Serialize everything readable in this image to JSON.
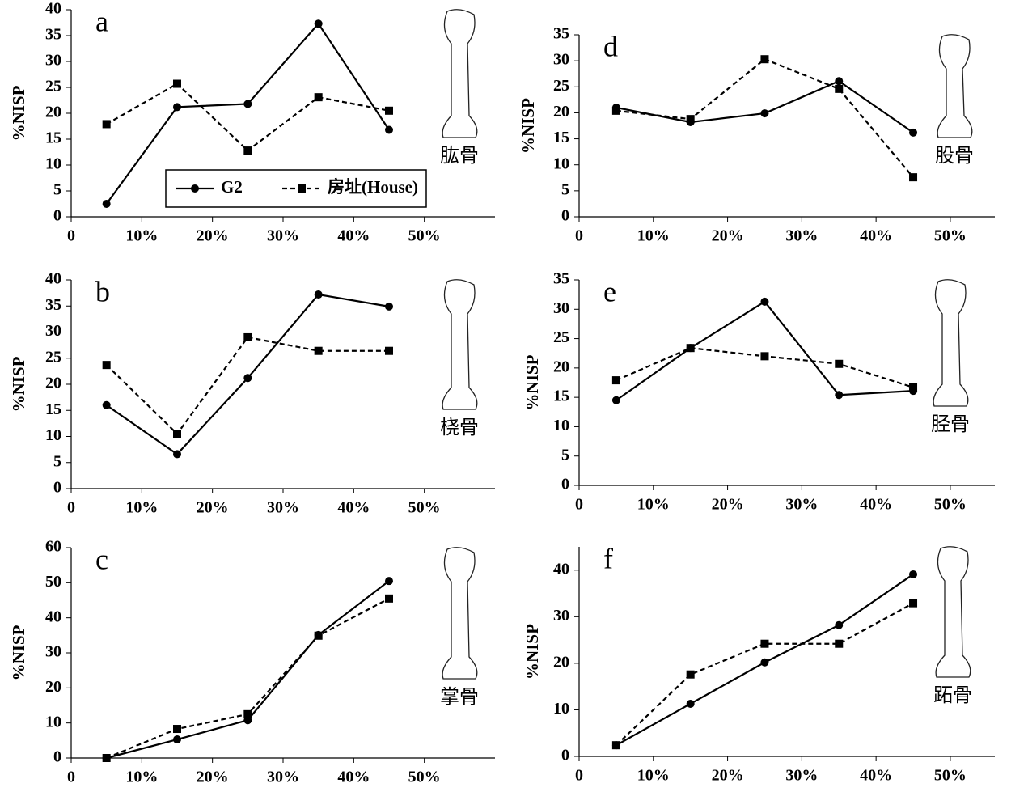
{
  "chart_data": [
    {
      "type": "line",
      "label": "a",
      "annotation": "肱骨",
      "ylabel": "%NISP",
      "x": [
        5,
        15,
        25,
        35,
        45
      ],
      "xlim": [
        0,
        60
      ],
      "xticks": [
        0,
        {
          "value": 10,
          "label": "10%"
        },
        {
          "value": 20,
          "label": "20%"
        },
        {
          "value": 30,
          "label": "30%"
        },
        {
          "value": 40,
          "label": "40%"
        },
        {
          "value": 50,
          "label": "50%"
        }
      ],
      "ylim": [
        0,
        40
      ],
      "yticks": [
        0,
        5,
        10,
        15,
        20,
        25,
        30,
        35,
        40
      ],
      "legend": "bottom",
      "series": [
        {
          "name": "G2",
          "color": "#000000",
          "marker": "circle",
          "dashed": false,
          "values": [
            2.5,
            21.2,
            21.8,
            37.3,
            16.8
          ]
        },
        {
          "name": "房址(House)",
          "color": "#000000",
          "marker": "square",
          "dashed": true,
          "values": [
            17.9,
            25.7,
            12.8,
            23.1,
            20.5
          ]
        }
      ]
    },
    {
      "type": "line",
      "label": "b",
      "annotation": "桡骨",
      "ylabel": "%NISP",
      "x": [
        5,
        15,
        25,
        35,
        45
      ],
      "xlim": [
        0,
        60
      ],
      "xticks": [
        0,
        {
          "value": 10,
          "label": "10%"
        },
        {
          "value": 20,
          "label": "20%"
        },
        {
          "value": 30,
          "label": "30%"
        },
        {
          "value": 40,
          "label": "40%"
        },
        {
          "value": 50,
          "label": "50%"
        }
      ],
      "ylim": [
        0,
        40
      ],
      "yticks": [
        0,
        5,
        10,
        15,
        20,
        25,
        30,
        35,
        40
      ],
      "series": [
        {
          "name": "G2",
          "color": "#000000",
          "marker": "circle",
          "dashed": false,
          "values": [
            16.0,
            6.6,
            21.2,
            37.2,
            34.9
          ]
        },
        {
          "name": "房址(House)",
          "color": "#000000",
          "marker": "square",
          "dashed": true,
          "values": [
            23.7,
            10.5,
            29.0,
            26.4,
            26.4
          ]
        }
      ]
    },
    {
      "type": "line",
      "label": "c",
      "annotation": "掌骨",
      "ylabel": "%NISP",
      "x": [
        5,
        15,
        25,
        35,
        45
      ],
      "xlim": [
        0,
        60
      ],
      "xticks": [
        0,
        {
          "value": 10,
          "label": "10%"
        },
        {
          "value": 20,
          "label": "20%"
        },
        {
          "value": 30,
          "label": "30%"
        },
        {
          "value": 40,
          "label": "40%"
        },
        {
          "value": 50,
          "label": "50%"
        }
      ],
      "ylim": [
        0,
        60
      ],
      "yticks": [
        0,
        10,
        20,
        30,
        40,
        50,
        60
      ],
      "series": [
        {
          "name": "G2",
          "color": "#000000",
          "marker": "circle",
          "dashed": false,
          "values": [
            0,
            5.3,
            10.8,
            35.1,
            50.5
          ]
        },
        {
          "name": "房址(House)",
          "color": "#000000",
          "marker": "square",
          "dashed": true,
          "values": [
            0,
            8.3,
            12.5,
            34.9,
            45.5
          ]
        }
      ]
    },
    {
      "type": "line",
      "label": "d",
      "annotation": "股骨",
      "ylabel": "%NISP",
      "x": [
        5,
        15,
        25,
        35,
        45
      ],
      "xlim": [
        0,
        56
      ],
      "xticks": [
        0,
        {
          "value": 10,
          "label": "10%"
        },
        {
          "value": 20,
          "label": "20%"
        },
        {
          "value": 30,
          "label": "30%"
        },
        {
          "value": 40,
          "label": "40%"
        },
        {
          "value": 50,
          "label": "50%"
        }
      ],
      "ylim": [
        0,
        35
      ],
      "yticks": [
        0,
        5,
        10,
        15,
        20,
        25,
        30,
        35
      ],
      "series": [
        {
          "name": "G2",
          "color": "#000000",
          "marker": "circle",
          "dashed": false,
          "values": [
            21.0,
            18.2,
            19.9,
            26.1,
            16.2
          ]
        },
        {
          "name": "房址(House)",
          "color": "#000000",
          "marker": "square",
          "dashed": true,
          "values": [
            20.4,
            18.8,
            30.3,
            24.6,
            7.6
          ]
        }
      ]
    },
    {
      "type": "line",
      "label": "e",
      "annotation": "胫骨",
      "ylabel": "%NISP",
      "x": [
        5,
        15,
        25,
        35,
        45
      ],
      "xlim": [
        0,
        56
      ],
      "xticks": [
        0,
        {
          "value": 10,
          "label": "10%"
        },
        {
          "value": 20,
          "label": "20%"
        },
        {
          "value": 30,
          "label": "30%"
        },
        {
          "value": 40,
          "label": "40%"
        },
        {
          "value": 50,
          "label": "50%"
        }
      ],
      "ylim": [
        0,
        35
      ],
      "yticks": [
        0,
        5,
        10,
        15,
        20,
        25,
        30,
        35
      ],
      "series": [
        {
          "name": "G2",
          "color": "#000000",
          "marker": "circle",
          "dashed": false,
          "values": [
            14.5,
            23.4,
            31.3,
            15.4,
            16.1
          ]
        },
        {
          "name": "房址(House)",
          "color": "#000000",
          "marker": "square",
          "dashed": true,
          "values": [
            17.9,
            23.4,
            22.0,
            20.7,
            16.7
          ]
        }
      ]
    },
    {
      "type": "line",
      "label": "f",
      "annotation": "跖骨",
      "ylabel": "%NISP",
      "x": [
        5,
        15,
        25,
        35,
        45
      ],
      "xlim": [
        0,
        56
      ],
      "xticks": [
        0,
        {
          "value": 10,
          "label": "10%"
        },
        {
          "value": 20,
          "label": "20%"
        },
        {
          "value": 30,
          "label": "30%"
        },
        {
          "value": 40,
          "label": "40%"
        },
        {
          "value": 50,
          "label": "50%"
        }
      ],
      "ylim": [
        0,
        45
      ],
      "yticks": [
        0,
        10,
        20,
        30,
        40
      ],
      "series": [
        {
          "name": "G2",
          "color": "#000000",
          "marker": "circle",
          "dashed": false,
          "values": [
            2.4,
            11.3,
            20.2,
            28.2,
            39.1
          ]
        },
        {
          "name": "房址(House)",
          "color": "#000000",
          "marker": "square",
          "dashed": true,
          "values": [
            2.4,
            17.6,
            24.2,
            24.2,
            32.9
          ]
        }
      ]
    }
  ]
}
